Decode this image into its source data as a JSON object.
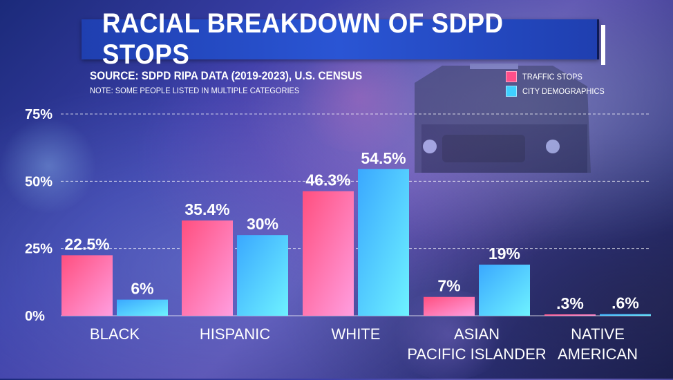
{
  "title": "RACIAL BREAKDOWN OF SDPD STOPS",
  "source": "SOURCE: SDPD RIPA DATA (2019-2023), U.S. CENSUS",
  "note": "NOTE: SOME PEOPLE LISTED IN MULTIPLE CATEGORIES",
  "colors": {
    "traffic_stops": "#ff4f8a",
    "city_demographics": "#3fd0ff"
  },
  "chart_data": {
    "type": "bar",
    "categories": [
      [
        "BLACK"
      ],
      [
        "HISPANIC"
      ],
      [
        "WHITE"
      ],
      [
        "ASIAN",
        "PACIFIC ISLANDER"
      ],
      [
        "NATIVE",
        "AMERICAN"
      ]
    ],
    "series": [
      {
        "name": "TRAFFIC STOPS",
        "values": [
          22.5,
          35.4,
          46.3,
          7,
          0.3
        ],
        "labels": [
          "22.5%",
          "35.4%",
          "46.3%",
          "7%",
          ".3%"
        ]
      },
      {
        "name": "CITY DEMOGRAPHICS",
        "values": [
          6,
          30,
          54.5,
          19,
          0.6
        ],
        "labels": [
          "6%",
          "30%",
          "54.5%",
          "19%",
          ".6%"
        ]
      }
    ],
    "yticks": [
      "0%",
      "25%",
      "50%",
      "75%"
    ],
    "ytick_values": [
      0,
      25,
      50,
      75
    ],
    "ylim": [
      0,
      75
    ],
    "grid": true,
    "legend_position": "top-right"
  }
}
